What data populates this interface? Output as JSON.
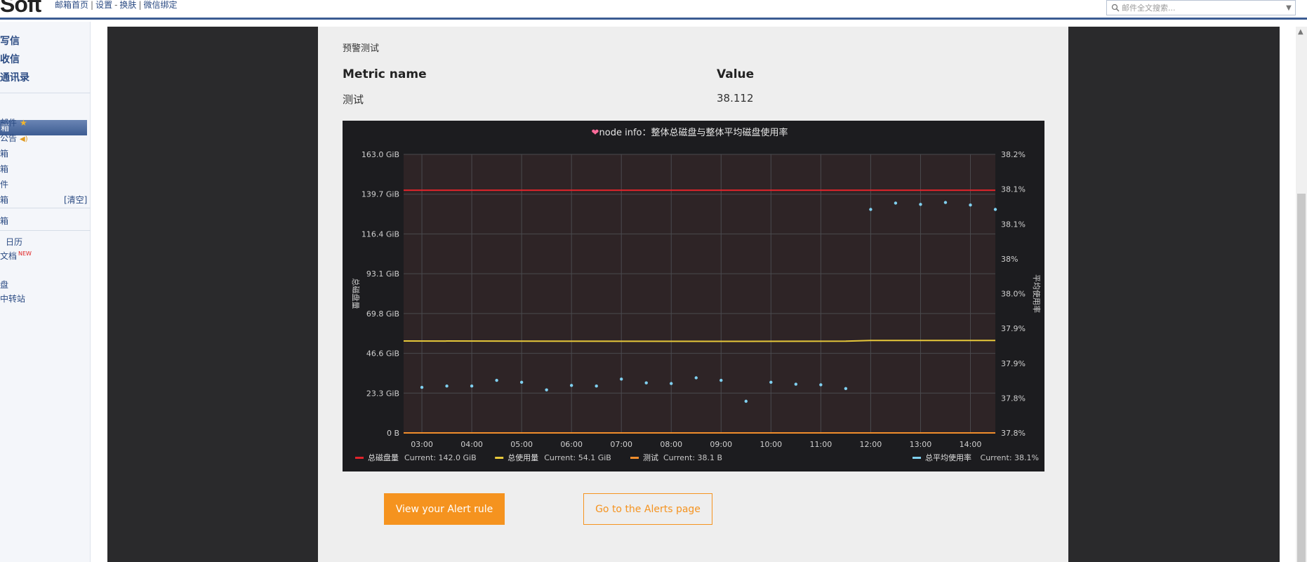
{
  "header": {
    "logo": "Soft",
    "links": [
      "邮箱首页",
      "设置",
      "换肤",
      "微信绑定"
    ],
    "search_placeholder": "邮件全文搜索..."
  },
  "sidebar": {
    "main": [
      "写信",
      "收信",
      "通讯录"
    ],
    "active": "箱",
    "items": [
      "邮件",
      "公告",
      "箱",
      "箱",
      "件",
      "箱"
    ],
    "clear": "[清空]",
    "folder": "箱",
    "apps": [
      "日历",
      "文档",
      "盘",
      "中转站"
    ],
    "new_badge": "NEW"
  },
  "email": {
    "title": "预警测试",
    "metric_header": "Metric name",
    "value_header": "Value",
    "metric_name": "测试",
    "metric_value": "38.112",
    "button_primary": "View your Alert rule",
    "button_secondary": "Go to the Alerts page"
  },
  "colors": {
    "chart_bg": "#1c1c1f",
    "plot_bg": "#2e2426",
    "red": "#e0242b",
    "yellow": "#e8c93a",
    "orange": "#f08d2c",
    "cyan": "#7fd0f0",
    "accent": "#f5931f"
  },
  "chart_data": {
    "type": "line",
    "title": "node info：整体总磁盘与整体平均磁盘使用率",
    "title_icon": "broken-heart-icon",
    "ylabel_left": "总磁盘量",
    "ylabel_right": "平均使用率",
    "x_ticks": [
      "03:00",
      "04:00",
      "05:00",
      "06:00",
      "07:00",
      "08:00",
      "09:00",
      "10:00",
      "11:00",
      "12:00",
      "13:00",
      "14:00"
    ],
    "x_range": [
      "02:38",
      "14:30"
    ],
    "y_left_ticks": [
      "163.0 GiB",
      "139.7 GiB",
      "116.4 GiB",
      "93.1 GiB",
      "69.8 GiB",
      "46.6 GiB",
      "23.3 GiB",
      "0 B"
    ],
    "y_left_range_gib": [
      0,
      163
    ],
    "y_right_ticks": [
      "38.2%",
      "38.1%",
      "38.1%",
      "38%",
      "38.0%",
      "37.9%",
      "37.9%",
      "37.8%",
      "37.8%"
    ],
    "y_right_range": [
      37.76,
      38.2
    ],
    "grid": true,
    "legend_left": "bottom-left",
    "legend_right": "bottom-right",
    "series": [
      {
        "name": "总磁盘量",
        "axis": "left",
        "style": "line",
        "color": "#e0242b",
        "current": "Current: 142.0 GiB",
        "x": [
          "02:38",
          "14:30"
        ],
        "y": [
          142.0,
          142.0
        ]
      },
      {
        "name": "总使用量",
        "axis": "left",
        "style": "line",
        "color": "#e8c93a",
        "current": "Current: 54.1 GiB",
        "x": [
          "02:38",
          "09:30",
          "11:30",
          "12:00",
          "14:30"
        ],
        "y": [
          53.8,
          53.6,
          53.7,
          54.1,
          54.1
        ]
      },
      {
        "name": "测试",
        "axis": "left",
        "style": "line",
        "color": "#f08d2c",
        "current": "Current: 38.1 B",
        "x": [
          "02:38",
          "14:30"
        ],
        "y": [
          0,
          0
        ]
      },
      {
        "name": "总平均使用率",
        "axis": "right",
        "style": "points",
        "color": "#7fd0f0",
        "current": "Current: 38.1%",
        "x": [
          "03:00",
          "03:30",
          "04:00",
          "04:30",
          "05:00",
          "05:30",
          "06:00",
          "06:30",
          "07:00",
          "07:30",
          "08:00",
          "08:30",
          "09:00",
          "09:30",
          "10:00",
          "10:30",
          "11:00",
          "11:30",
          "12:00",
          "12:30",
          "13:00",
          "13:30",
          "14:00",
          "14:30"
        ],
        "y": [
          37.832,
          37.834,
          37.834,
          37.843,
          37.84,
          37.828,
          37.835,
          37.834,
          37.845,
          37.839,
          37.838,
          37.847,
          37.843,
          37.81,
          37.84,
          37.837,
          37.836,
          37.83,
          38.113,
          38.123,
          38.121,
          38.124,
          38.12,
          38.113
        ]
      }
    ]
  }
}
